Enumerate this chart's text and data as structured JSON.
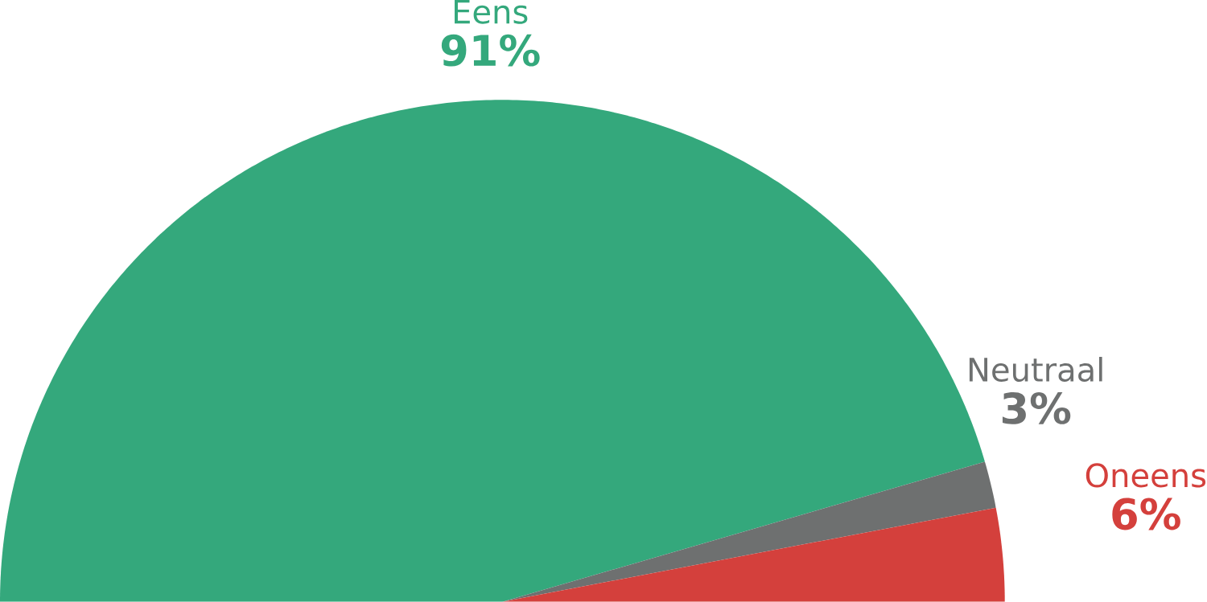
{
  "chart_data": {
    "type": "pie",
    "categories": [
      "Eens",
      "Neutraal",
      "Oneens"
    ],
    "values": [
      91,
      3,
      6
    ],
    "colors": [
      "#34a87c",
      "#6e7070",
      "#d4403c"
    ],
    "value_labels": [
      "91%",
      "3%",
      "6%"
    ]
  }
}
